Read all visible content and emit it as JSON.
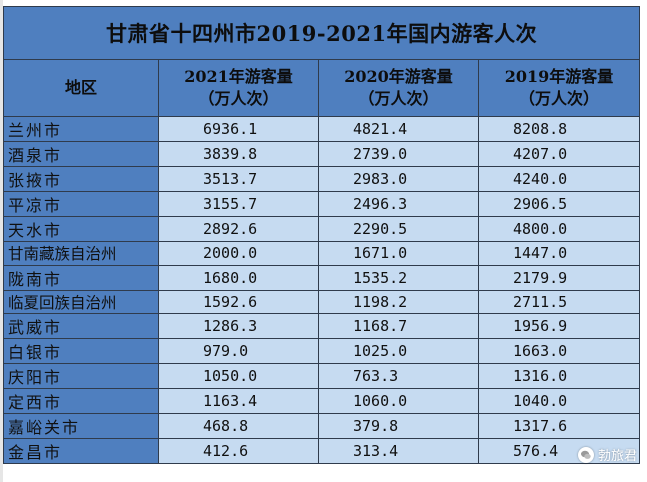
{
  "table": {
    "title": "甘肃省十四州市2019-2021年国内游客人次",
    "headers": {
      "region": "地区",
      "y2021_line1": "2021年游客量",
      "y2021_line2": "（万人次）",
      "y2020_line1": "2020年游客量",
      "y2020_line2": "（万人次）",
      "y2019_line1": "2019年游客量",
      "y2019_line2": "（万人次）"
    },
    "rows": [
      {
        "region": "兰州市",
        "y2021": "6936.1",
        "y2020": "4821.4",
        "y2019": "8208.8"
      },
      {
        "region": "酒泉市",
        "y2021": "3839.8",
        "y2020": "2739.0",
        "y2019": "4207.0"
      },
      {
        "region": "张掖市",
        "y2021": "3513.7",
        "y2020": "2983.0",
        "y2019": "4240.0"
      },
      {
        "region": "平凉市",
        "y2021": "3155.7",
        "y2020": "2496.3",
        "y2019": "2906.5"
      },
      {
        "region": "天水市",
        "y2021": "2892.6",
        "y2020": "2290.5",
        "y2019": "4800.0"
      },
      {
        "region": "甘南藏族自治州",
        "y2021": "2000.0",
        "y2020": "1671.0",
        "y2019": "1447.0"
      },
      {
        "region": "陇南市",
        "y2021": "1680.0",
        "y2020": "1535.2",
        "y2019": "2179.9"
      },
      {
        "region": "临夏回族自治州",
        "y2021": "1592.6",
        "y2020": "1198.2",
        "y2019": "2711.5"
      },
      {
        "region": "武威市",
        "y2021": "1286.3",
        "y2020": "1168.7",
        "y2019": "1956.9"
      },
      {
        "region": "白银市",
        "y2021": "979.0",
        "y2020": "1025.0",
        "y2019": "1663.0"
      },
      {
        "region": "庆阳市",
        "y2021": "1050.0",
        "y2020": "763.3",
        "y2019": "1316.0"
      },
      {
        "region": "定西市",
        "y2021": "1163.4",
        "y2020": "1060.0",
        "y2019": "1040.0"
      },
      {
        "region": "嘉峪关市",
        "y2021": "468.8",
        "y2020": "379.8",
        "y2019": "1317.6"
      },
      {
        "region": "金昌市",
        "y2021": "412.6",
        "y2020": "313.4",
        "y2019": "576.4"
      }
    ]
  },
  "watermark": {
    "text": "勃旅君",
    "icon": "wechat-icon"
  },
  "colors": {
    "header_bg": "#4f7fbf",
    "cell_bg": "#c6dbf1",
    "border": "#2f3b4c"
  }
}
